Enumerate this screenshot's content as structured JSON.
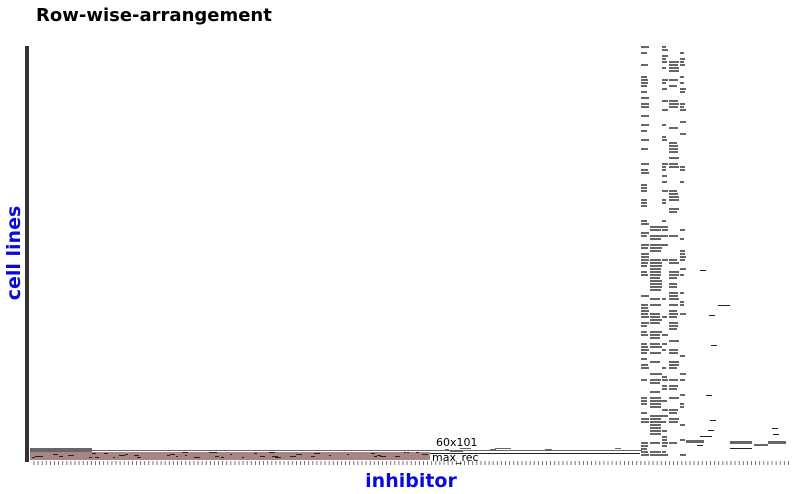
{
  "chart_data": {
    "type": "heatmap",
    "title": "Row-wise-arrangement",
    "xlabel": "inhibitor",
    "ylabel": "cell lines",
    "annotations": [
      "60x101",
      "max_rec"
    ],
    "colors": {
      "cell": "#666666",
      "dark": "#222222",
      "highlight": "#a88484",
      "axis": "#333333",
      "label": "#0a0adc"
    }
  }
}
